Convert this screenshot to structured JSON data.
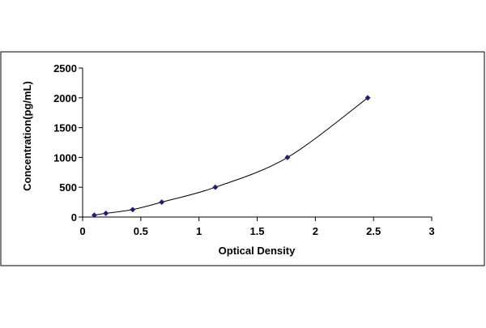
{
  "chart_data": {
    "type": "scatter",
    "title": "",
    "xlabel": "Optical Density",
    "ylabel": "Concentration(pg/mL)",
    "xlim": [
      0,
      3
    ],
    "ylim": [
      0,
      2500
    ],
    "x_ticks": [
      0,
      0.5,
      1,
      1.5,
      2,
      2.5,
      3
    ],
    "x_tick_labels": [
      "0",
      "0.5",
      "1",
      "1.5",
      "2",
      "2.5",
      "3"
    ],
    "y_ticks": [
      0,
      500,
      1000,
      1500,
      2000,
      2500
    ],
    "y_tick_labels": [
      "0",
      "500",
      "1000",
      "1500",
      "2000",
      "2500"
    ],
    "grid": false,
    "legend": "none",
    "trendline": "smooth",
    "series": [
      {
        "x": [
          0.1,
          0.2,
          0.43,
          0.68,
          1.14,
          1.76,
          2.45
        ],
        "y": [
          31.25,
          62.5,
          125,
          250,
          500,
          1000,
          2000
        ]
      }
    ],
    "colors": {
      "marker": "#1f1f7a",
      "line": "#000000",
      "axis": "#000000",
      "frame": "#000000"
    }
  }
}
